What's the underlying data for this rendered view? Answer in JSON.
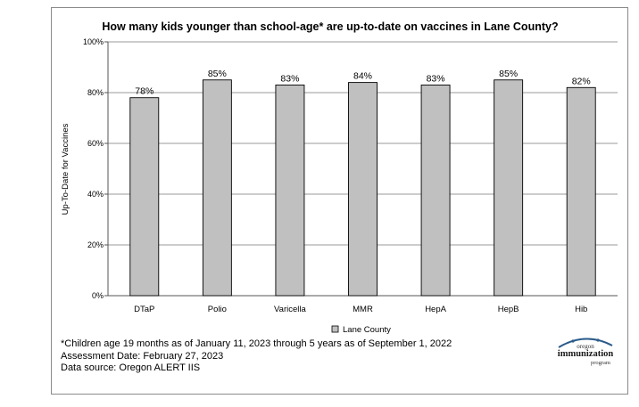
{
  "chart_data": {
    "type": "bar",
    "title": "How many kids younger than school-age* are up-to-date on vaccines in Lane County?",
    "ylabel": "Up-To-Date for Vaccines",
    "xlabel": "",
    "categories": [
      "DTaP",
      "Polio",
      "Varicella",
      "MMR",
      "HepA",
      "HepB",
      "Hib"
    ],
    "series": [
      {
        "name": "Lane County",
        "values": [
          78,
          85,
          83,
          84,
          83,
          85,
          82
        ]
      }
    ],
    "data_labels": [
      "78%",
      "85%",
      "83%",
      "84%",
      "83%",
      "85%",
      "82%"
    ],
    "ylim": [
      0,
      100
    ],
    "yticks": [
      0,
      20,
      40,
      60,
      80,
      100
    ],
    "ytick_labels": [
      "0%",
      "20%",
      "40%",
      "60%",
      "80%",
      "100%"
    ],
    "grid": true,
    "legend": "bottom-center",
    "bar_color": "#c0c0c0",
    "bar_edge_color": "#000000"
  },
  "footnotes": {
    "line1": "*Children age 19 months as of January 11, 2023 through 5 years as of September 1, 2022",
    "line2": "Assessment Date: February 27, 2023",
    "line3": "Data source: Oregon ALERT IIS"
  },
  "logo": {
    "top": "oregon",
    "main": "immunization",
    "sub": "program"
  }
}
